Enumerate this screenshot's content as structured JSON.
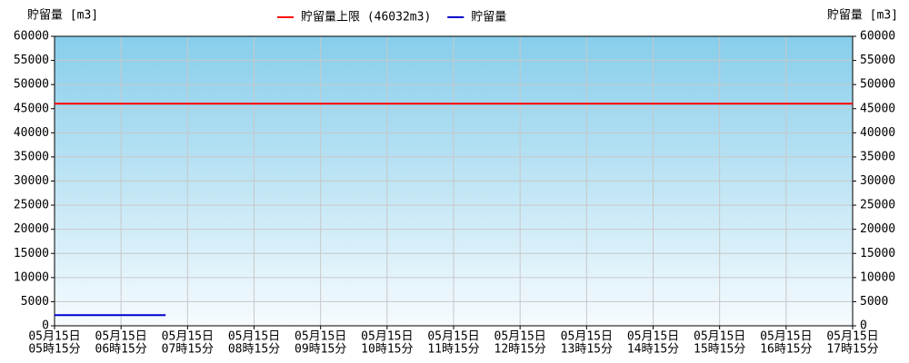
{
  "chart_data": {
    "type": "line",
    "ylabel": "貯留量 [m3]",
    "y2label": "貯留量 [m3]",
    "xlim": [
      5.25,
      17.25
    ],
    "xticks": [
      {
        "value": 5.25,
        "label": [
          "05月15日",
          "05時15分"
        ]
      },
      {
        "value": 6.25,
        "label": [
          "05月15日",
          "06時15分"
        ]
      },
      {
        "value": 7.25,
        "label": [
          "05月15日",
          "07時15分"
        ]
      },
      {
        "value": 8.25,
        "label": [
          "05月15日",
          "08時15分"
        ]
      },
      {
        "value": 9.25,
        "label": [
          "05月15日",
          "09時15分"
        ]
      },
      {
        "value": 10.25,
        "label": [
          "05月15日",
          "10時15分"
        ]
      },
      {
        "value": 11.25,
        "label": [
          "05月15日",
          "11時15分"
        ]
      },
      {
        "value": 12.25,
        "label": [
          "05月15日",
          "12時15分"
        ]
      },
      {
        "value": 13.25,
        "label": [
          "05月15日",
          "13時15分"
        ]
      },
      {
        "value": 14.25,
        "label": [
          "05月15日",
          "14時15分"
        ]
      },
      {
        "value": 15.25,
        "label": [
          "05月15日",
          "15時15分"
        ]
      },
      {
        "value": 16.25,
        "label": [
          "05月15日",
          "16時15分"
        ]
      },
      {
        "value": 17.25,
        "label": [
          "05月15日",
          "17時15分"
        ]
      }
    ],
    "ylim": [
      0,
      60000
    ],
    "yticks": [
      0,
      5000,
      10000,
      15000,
      20000,
      25000,
      30000,
      35000,
      40000,
      45000,
      50000,
      55000,
      60000
    ],
    "y2lim": [
      0,
      60000
    ],
    "y2ticks": [
      0,
      5000,
      10000,
      15000,
      20000,
      25000,
      30000,
      35000,
      40000,
      45000,
      50000,
      55000,
      60000
    ],
    "grid": true,
    "series": [
      {
        "name": "貯留量上限 (46032m3)",
        "color": "#ff0000",
        "x": [
          5.25,
          17.25
        ],
        "values": [
          46032,
          46032
        ]
      },
      {
        "name": "貯留量",
        "color": "#0000cc",
        "x": [
          5.25,
          6.92
        ],
        "values": [
          2200,
          2200
        ]
      }
    ]
  }
}
